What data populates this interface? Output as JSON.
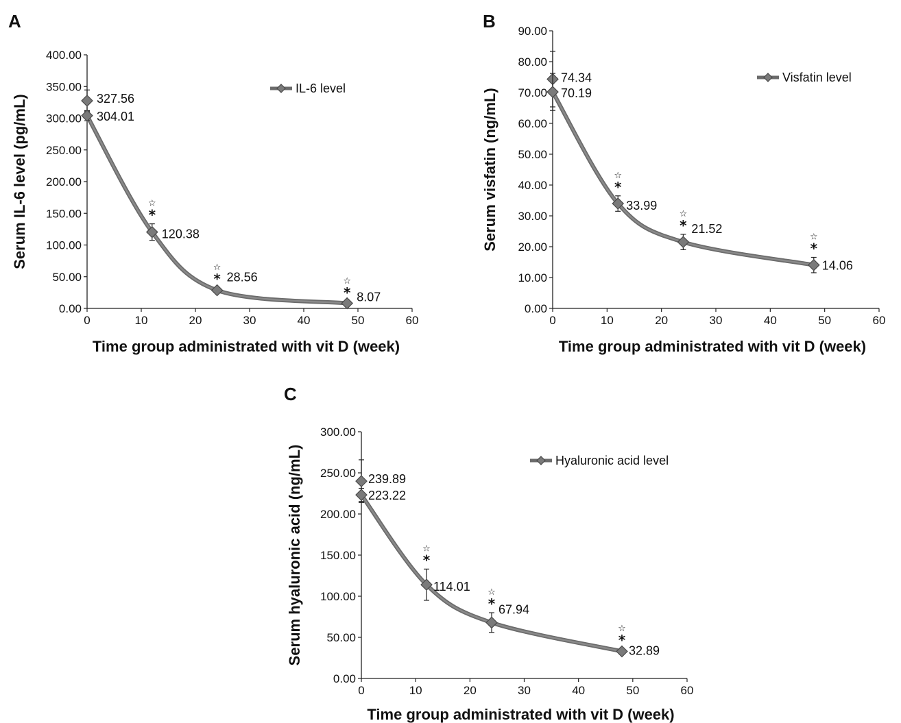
{
  "chart_data": [
    {
      "type": "line",
      "panel_label": "A",
      "xlabel": "Time group administrated with vit D (week)",
      "ylabel": "Serum IL-6 level (pg/mL)",
      "xlim": [
        0,
        60
      ],
      "ylim": [
        0,
        400
      ],
      "x_ticks": [
        "0",
        "10",
        "20",
        "30",
        "40",
        "50",
        "60"
      ],
      "y_ticks": [
        "0.00",
        "50.00",
        "100.00",
        "150.00",
        "200.00",
        "250.00",
        "300.00",
        "350.00",
        "400.00"
      ],
      "grid": false,
      "legend_position": "top-right",
      "series": [
        {
          "name": "IL-6 level",
          "color": "#6b6b6b",
          "points": [
            {
              "x": 0,
              "y": 327.56,
              "label": "327.56",
              "err": 17
            },
            {
              "x": 0,
              "y": 304.01,
              "label": "304.01",
              "err": 8
            },
            {
              "x": 12,
              "y": 120.38,
              "label": "120.38",
              "err": 13,
              "sig": true
            },
            {
              "x": 24,
              "y": 28.56,
              "label": "28.56",
              "err": 4,
              "sig": true
            },
            {
              "x": 48,
              "y": 8.07,
              "label": "8.07",
              "err": 3,
              "sig": true
            }
          ]
        }
      ],
      "sig_markers": [
        "☆",
        "*"
      ]
    },
    {
      "type": "line",
      "panel_label": "B",
      "xlabel": "Time group administrated with vit D (week)",
      "ylabel": "Serum visfatin (ng/mL)",
      "xlim": [
        0,
        60
      ],
      "ylim": [
        0,
        90
      ],
      "x_ticks": [
        "0",
        "10",
        "20",
        "30",
        "40",
        "50",
        "60"
      ],
      "y_ticks": [
        "0.00",
        "10.00",
        "20.00",
        "30.00",
        "40.00",
        "50.00",
        "60.00",
        "70.00",
        "80.00",
        "90.00"
      ],
      "grid": false,
      "legend_position": "top-right",
      "series": [
        {
          "name": "Visfatin level",
          "color": "#6b6b6b",
          "points": [
            {
              "x": 0,
              "y": 74.34,
              "label": "74.34",
              "err": 9
            },
            {
              "x": 0,
              "y": 70.19,
              "label": "70.19",
              "err": 6
            },
            {
              "x": 12,
              "y": 33.99,
              "label": "33.99",
              "err": 2.5,
              "sig": true
            },
            {
              "x": 24,
              "y": 21.52,
              "label": "21.52",
              "err": 2.5,
              "sig": true
            },
            {
              "x": 48,
              "y": 14.06,
              "label": "14.06",
              "err": 2.5,
              "sig": true
            }
          ]
        }
      ],
      "sig_markers": [
        "☆",
        "*"
      ]
    },
    {
      "type": "line",
      "panel_label": "C",
      "xlabel": "Time group administrated with vit D (week)",
      "ylabel": "Serum hyaluronic acid (ng/mL)",
      "xlim": [
        0,
        60
      ],
      "ylim": [
        0,
        300
      ],
      "x_ticks": [
        "0",
        "10",
        "20",
        "30",
        "40",
        "50",
        "60"
      ],
      "y_ticks": [
        "0.00",
        "50.00",
        "100.00",
        "150.00",
        "200.00",
        "250.00",
        "300.00"
      ],
      "grid": false,
      "legend_position": "top-right",
      "series": [
        {
          "name": "Hyaluronic acid level",
          "color": "#6b6b6b",
          "points": [
            {
              "x": 0,
              "y": 239.89,
              "label": "239.89",
              "err": 26
            },
            {
              "x": 0,
              "y": 223.22,
              "label": "223.22",
              "err": 8
            },
            {
              "x": 12,
              "y": 114.01,
              "label": "114.01",
              "err": 19,
              "sig": true
            },
            {
              "x": 24,
              "y": 67.94,
              "label": "67.94",
              "err": 12,
              "sig": true
            },
            {
              "x": 48,
              "y": 32.89,
              "label": "32.89",
              "err": 3,
              "sig": true
            }
          ]
        }
      ],
      "sig_markers": [
        "☆",
        "*"
      ]
    }
  ]
}
